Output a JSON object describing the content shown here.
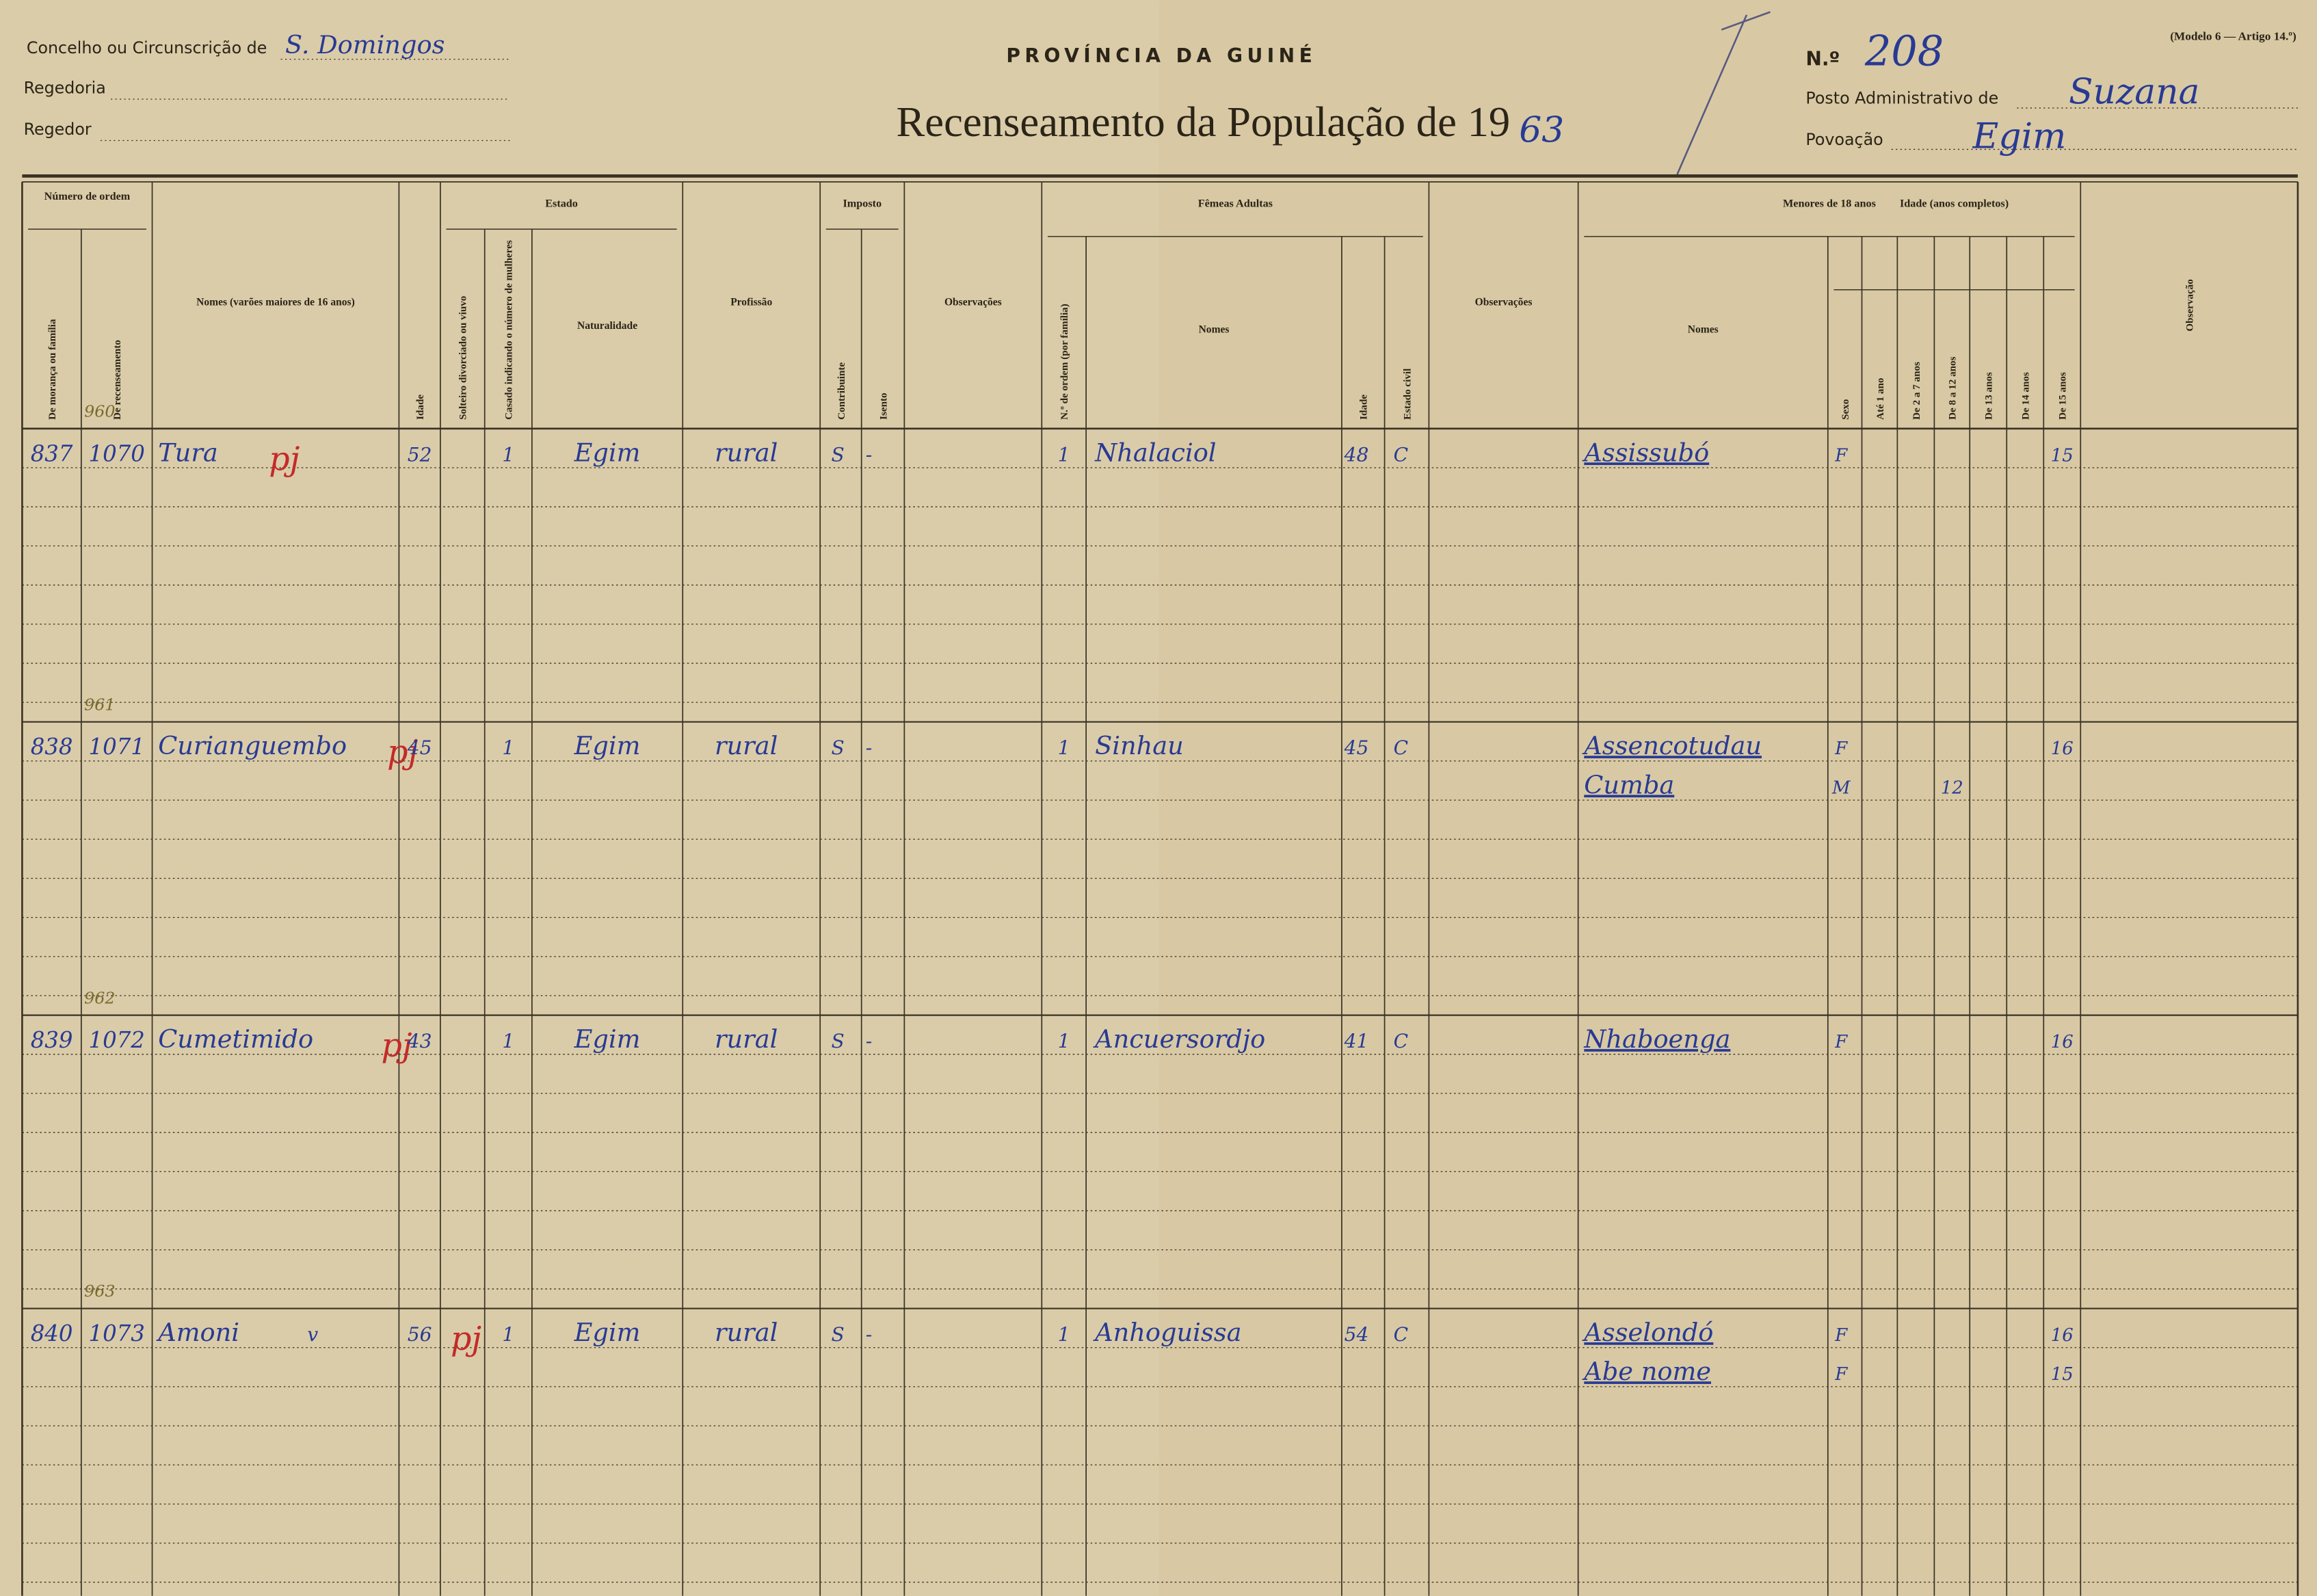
{
  "header": {
    "council_label": "Concelho ou Circunscrição de",
    "council": "S. Domingos",
    "regedoria_label": "Regedoria",
    "regedor_label": "Regedor",
    "province": "PROVÍNCIA DA GUINÉ",
    "title": "Recenseamento da População de 19",
    "year_suffix": "63",
    "model": "(Modelo 6 — Artigo 14.º)",
    "number_label": "N.º",
    "number": "208",
    "posto_label": "Posto Administrativo de",
    "posto": "Suzana",
    "povoacao_label": "Povoação",
    "povoacao": "Egim"
  },
  "table": {
    "groups": [
      "Número de ordem",
      "Estado",
      "Imposto",
      "Fêmeas Adultas",
      "Menores de 18 anos",
      "Idade (anos completos)"
    ],
    "columns": [
      "De morança ou família",
      "De recenseamento",
      "Nomes (varões maiores de 16 anos)",
      "Idade",
      "Solteiro divorciado ou viuvo",
      "Casado indicando o número de mulheres",
      "Naturalidade",
      "Profissão",
      "Contribuinte",
      "Isento",
      "Observações",
      "N.º de ordem (por família)",
      "Nomes",
      "Idade",
      "Estado civil",
      "Observações",
      "Nomes",
      "Sexo",
      "Até 1 ano",
      "De 2 a 7 anos",
      "De 8 a 12 anos",
      "De 13 anos",
      "De 14 anos",
      "De 15 anos",
      "Observação"
    ],
    "records": [
      {
        "annotation": "960",
        "moranca": "837",
        "recenseamento": "1070",
        "nome": "Tura",
        "mark": "pj",
        "idade": "52",
        "casado": "1",
        "naturalidade": "Egim",
        "profissao": "rural",
        "contribuinte": "S",
        "isento": "-",
        "female": {
          "ordem": "1",
          "nome": "Nhalaciol",
          "idade": "48",
          "estado": "C"
        },
        "minors": [
          {
            "nome": "Assissubó",
            "sexo": "F",
            "idade": "15"
          }
        ]
      },
      {
        "annotation": "961",
        "moranca": "838",
        "recenseamento": "1071",
        "nome": "Curianguembo",
        "mark": "pj",
        "idade": "45",
        "casado": "1",
        "naturalidade": "Egim",
        "profissao": "rural",
        "contribuinte": "S",
        "isento": "-",
        "female": {
          "ordem": "1",
          "nome": "Sinhau",
          "idade": "45",
          "estado": "C"
        },
        "minors": [
          {
            "nome": "Assencotudau",
            "sexo": "F",
            "idade": "16"
          },
          {
            "nome": "Cumba",
            "sexo": "M",
            "idade": "12"
          }
        ]
      },
      {
        "annotation": "962",
        "moranca": "839",
        "recenseamento": "1072",
        "nome": "Cumetimido",
        "mark": "pj",
        "idade": "43",
        "casado": "1",
        "naturalidade": "Egim",
        "profissao": "rural",
        "contribuinte": "S",
        "isento": "-",
        "female": {
          "ordem": "1",
          "nome": "Ancuersordjo",
          "idade": "41",
          "estado": "C"
        },
        "minors": [
          {
            "nome": "Nhaboenga",
            "sexo": "F",
            "idade": "16"
          }
        ]
      },
      {
        "annotation": "963",
        "moranca": "840",
        "recenseamento": "1073",
        "nome": "Amoni",
        "check": "v",
        "mark": "pj",
        "idade": "56",
        "casado": "1",
        "naturalidade": "Egim",
        "profissao": "rural",
        "contribuinte": "S",
        "isento": "-",
        "female": {
          "ordem": "1",
          "nome": "Anhoguissa",
          "idade": "54",
          "estado": "C"
        },
        "minors": [
          {
            "nome": "Asselondó",
            "sexo": "F",
            "idade": "16"
          },
          {
            "nome": "Abe nome",
            "sexo": "F",
            "idade": "15"
          }
        ]
      }
    ]
  }
}
